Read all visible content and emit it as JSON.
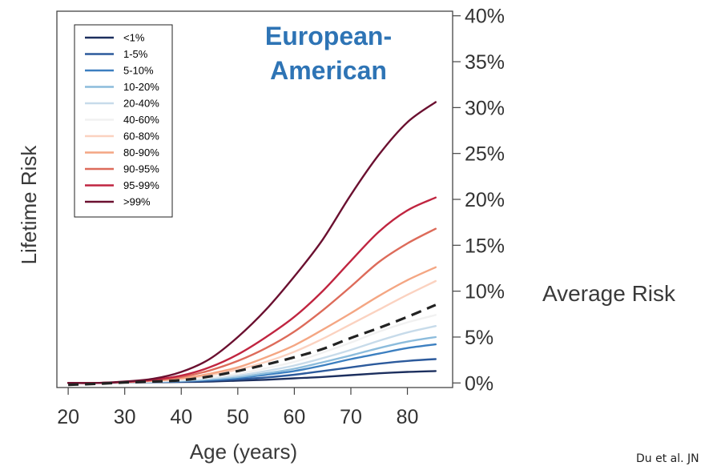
{
  "chart_data": {
    "type": "line",
    "title": "European-American",
    "title_line1": "European-",
    "title_line2": "American",
    "xlabel": "Age (years)",
    "ylabel": "Lifetime Risk",
    "right_annotation": "Average Risk",
    "citation": "Du et al. JN",
    "xlim": [
      18,
      88
    ],
    "ylim": [
      -0.5,
      40.5
    ],
    "x_ticks": [
      20,
      30,
      40,
      50,
      60,
      70,
      80
    ],
    "y_ticks": [
      0,
      5,
      10,
      15,
      20,
      25,
      30,
      35,
      40
    ],
    "y_tick_labels": [
      "0%",
      "5%",
      "10%",
      "15%",
      "20%",
      "25%",
      "30%",
      "35%",
      "40%"
    ],
    "grid": false,
    "legend_position": "top-left",
    "x": [
      20,
      25,
      30,
      35,
      40,
      45,
      50,
      55,
      60,
      65,
      70,
      75,
      80,
      85
    ],
    "series": [
      {
        "name": "<1%",
        "color": "#1c2f5e",
        "values": [
          0,
          0,
          0.05,
          0.08,
          0.1,
          0.15,
          0.25,
          0.35,
          0.5,
          0.65,
          0.85,
          1.05,
          1.2,
          1.3
        ]
      },
      {
        "name": "1-5%",
        "color": "#2c5a9c",
        "values": [
          0,
          0,
          0.05,
          0.1,
          0.15,
          0.25,
          0.4,
          0.6,
          0.9,
          1.3,
          1.7,
          2.1,
          2.4,
          2.6
        ]
      },
      {
        "name": "5-10%",
        "color": "#3c7fc0",
        "values": [
          0,
          0,
          0.05,
          0.1,
          0.2,
          0.35,
          0.55,
          0.9,
          1.3,
          1.9,
          2.6,
          3.2,
          3.8,
          4.2
        ]
      },
      {
        "name": "10-20%",
        "color": "#8cbcdc",
        "values": [
          0,
          0,
          0.05,
          0.12,
          0.22,
          0.4,
          0.65,
          1.05,
          1.55,
          2.25,
          3.0,
          3.8,
          4.5,
          5.0
        ]
      },
      {
        "name": "20-40%",
        "color": "#c7dbea",
        "values": [
          0,
          0,
          0.05,
          0.15,
          0.28,
          0.5,
          0.8,
          1.3,
          1.9,
          2.7,
          3.6,
          4.6,
          5.5,
          6.2
        ]
      },
      {
        "name": "40-60%",
        "color": "#f1f1f1",
        "values": [
          0,
          0,
          0.06,
          0.18,
          0.35,
          0.6,
          1.0,
          1.6,
          2.3,
          3.3,
          4.4,
          5.6,
          6.6,
          7.4
        ]
      },
      {
        "name": "60-80%",
        "color": "#fbd2c0",
        "values": [
          0,
          0,
          0.08,
          0.22,
          0.45,
          0.85,
          1.45,
          2.3,
          3.4,
          4.8,
          6.4,
          8.0,
          9.6,
          11.1
        ]
      },
      {
        "name": "80-90%",
        "color": "#f4a683",
        "values": [
          0,
          0,
          0.08,
          0.25,
          0.5,
          1.0,
          1.7,
          2.8,
          4.1,
          5.8,
          7.6,
          9.5,
          11.2,
          12.6
        ]
      },
      {
        "name": "90-95%",
        "color": "#dd6b5a",
        "values": [
          0,
          0,
          0.1,
          0.3,
          0.65,
          1.35,
          2.4,
          3.8,
          5.6,
          7.9,
          10.5,
          13.2,
          15.2,
          16.8
        ]
      },
      {
        "name": "95-99%",
        "color": "#c02540",
        "values": [
          0,
          0,
          0.12,
          0.35,
          0.8,
          1.7,
          3.1,
          5.0,
          7.2,
          10.0,
          13.3,
          16.5,
          18.8,
          20.2
        ]
      },
      {
        "name": ">99%",
        "color": "#6b1030",
        "values": [
          0,
          0,
          0.15,
          0.45,
          1.2,
          2.6,
          5.0,
          8.0,
          11.6,
          15.6,
          20.5,
          24.9,
          28.4,
          30.6
        ]
      }
    ],
    "average": {
      "dashed": true,
      "color": "#222222",
      "values": [
        -0.2,
        -0.1,
        0.05,
        0.15,
        0.3,
        0.7,
        1.3,
        2.0,
        2.8,
        3.7,
        4.9,
        6.0,
        7.2,
        8.5
      ]
    }
  }
}
